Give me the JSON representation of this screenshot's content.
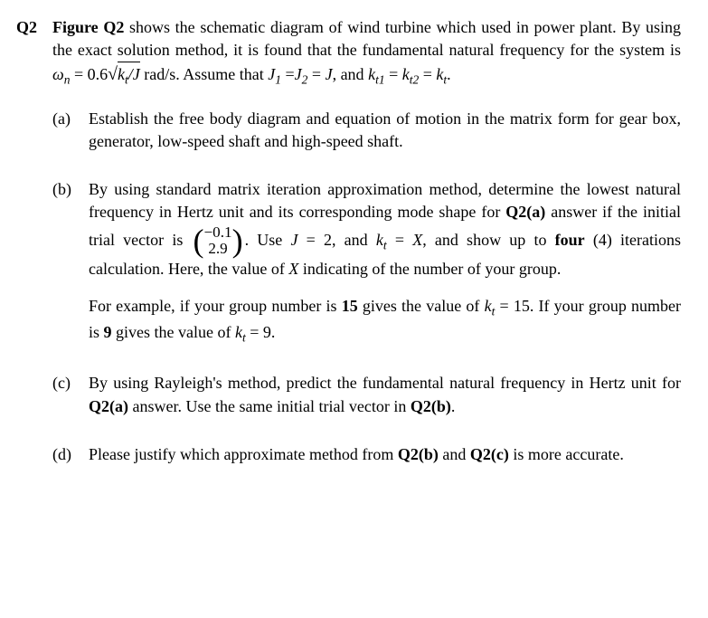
{
  "question": {
    "number": "Q2",
    "intro_part1": "Figure Q2",
    "intro_part2": " shows the schematic diagram of wind turbine which used in power plant. By using the exact solution method, it is found that the fundamental natural frequency for the system is ",
    "omega_var": "ω",
    "omega_sub": "n",
    "equals": " = 0.6",
    "sqrt_sign": "√",
    "sqrt_content": "k",
    "sqrt_sub": "t",
    "sqrt_content2": "/J",
    "units": " rad/s. Assume that ",
    "j1": "J",
    "j1sub": "1",
    "eq1": " =",
    "j2": "J",
    "j2sub": "2",
    "eq2": " = ",
    "jval": "J",
    "comma": ", and ",
    "kt1": "k",
    "kt1sub": "t1",
    "eq3": " = ",
    "kt2": "k",
    "kt2sub": "t2",
    "eq4": " = ",
    "kt": "k",
    "ktsub": "t",
    "period": "."
  },
  "parts": {
    "a": {
      "label": "(a)",
      "text": "Establish the free body diagram and equation of motion in the matrix form for gear box, generator, low-speed shaft and high-speed shaft."
    },
    "b": {
      "label": "(b)",
      "text1": "By using standard matrix iteration approximation method, determine the lowest natural frequency in Hertz unit and its corresponding mode shape for ",
      "bold1": "Q2(a)",
      "text2": " answer if the initial trial vector is ",
      "vec_top": "−0.1",
      "vec_bot": "2.9",
      "text3": ". Use ",
      "jvar": "J",
      "jval": " = 2, and ",
      "kvar": "k",
      "ksub": "t",
      "kval": " = ",
      "xvar": "X",
      "text4": ", and show up to ",
      "bold2": "four",
      "text5": " (4) iterations calculation. Here, the value of ",
      "xvar2": "X",
      "text6": " indicating of the number of your group.",
      "example1": "For example, if your group number is ",
      "ex_bold1": "15",
      "example2": " gives the value of ",
      "ex_k1": "k",
      "ex_ksub1": "t",
      "ex_val1": " = 15. If your group number is ",
      "ex_bold2": "9",
      "example3": " gives the value of ",
      "ex_k2": "k",
      "ex_ksub2": "t",
      "ex_val2": " = 9."
    },
    "c": {
      "label": "(c)",
      "text1": "By using Rayleigh's method, predict the fundamental natural frequency in Hertz unit for ",
      "bold1": "Q2(a)",
      "text2": " answer. Use the same initial trial vector in ",
      "bold2": "Q2(b)",
      "text3": "."
    },
    "d": {
      "label": "(d)",
      "text1": "Please justify which approximate method from ",
      "bold1": "Q2(b)",
      "text2": " and ",
      "bold2": "Q2(c)",
      "text3": " is more accurate."
    }
  }
}
